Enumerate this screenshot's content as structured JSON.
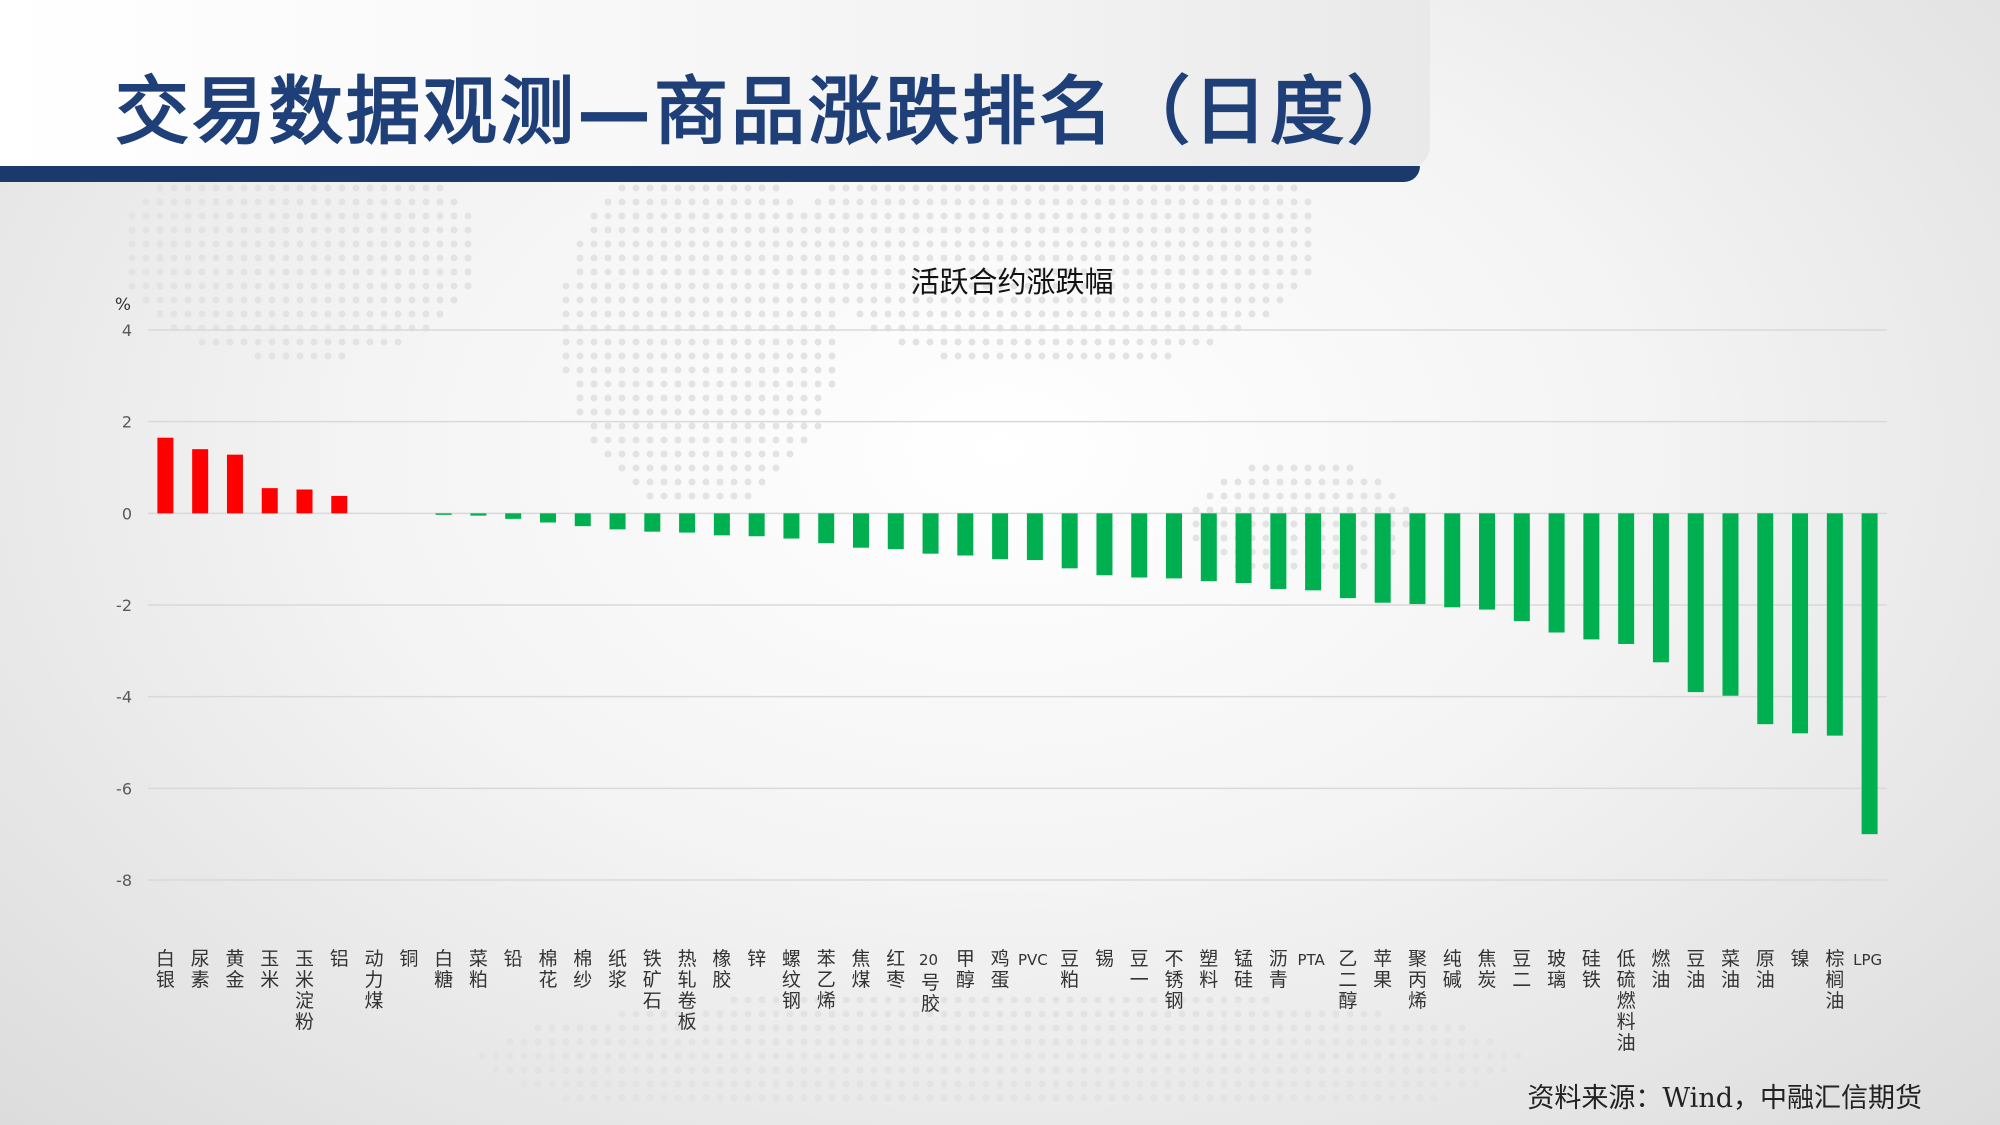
{
  "page": {
    "title": "交易数据观测—商品涨跌排名（日度）",
    "source": "资料来源：Wind，中融汇信期货"
  },
  "colors": {
    "title": "#1e3f78",
    "rule": "#1b3a6b",
    "up": "#ff0000",
    "down": "#00b050",
    "grid": "#d9d9d9",
    "axis_text": "#595959"
  },
  "chart_data": {
    "type": "bar",
    "title": "活跃合约涨跌幅",
    "ylabel": "%",
    "xlabel": "",
    "ylim": [
      -8,
      4
    ],
    "yticks": [
      4,
      2,
      0,
      -2,
      -4,
      -6,
      -8
    ],
    "grid": true,
    "legend": "none",
    "categories": [
      "白银",
      "尿素",
      "黄金",
      "玉米",
      "玉米淀粉",
      "铝",
      "动力煤",
      "铜",
      "白糖",
      "菜粕",
      "铅",
      "棉花",
      "棉纱",
      "纸浆",
      "铁矿石",
      "热轧卷板",
      "橡胶",
      "锌",
      "螺纹钢",
      "苯乙烯",
      "焦煤",
      "红枣",
      "20号胶",
      "甲醇",
      "鸡蛋",
      "PVC",
      "豆粕",
      "锡",
      "豆一",
      "不锈钢",
      "塑料",
      "锰硅",
      "沥青",
      "PTA",
      "乙二醇",
      "苹果",
      "聚丙烯",
      "纯碱",
      "焦炭",
      "豆二",
      "玻璃",
      "硅铁",
      "低硫燃料油",
      "燃油",
      "豆油",
      "菜油",
      "原油",
      "镍",
      "棕榈油",
      "LPG"
    ],
    "values": [
      1.65,
      1.4,
      1.28,
      0.55,
      0.52,
      0.38,
      0,
      0,
      -0.02,
      -0.05,
      -0.12,
      -0.2,
      -0.28,
      -0.35,
      -0.4,
      -0.42,
      -0.48,
      -0.5,
      -0.55,
      -0.65,
      -0.75,
      -0.78,
      -0.88,
      -0.92,
      -1.0,
      -1.02,
      -1.2,
      -1.35,
      -1.4,
      -1.42,
      -1.48,
      -1.52,
      -1.65,
      -1.68,
      -1.85,
      -1.95,
      -1.98,
      -2.05,
      -2.1,
      -2.35,
      -2.6,
      -2.75,
      -2.85,
      -3.25,
      -3.9,
      -3.98,
      -4.6,
      -4.8,
      -4.85,
      -7.0
    ]
  }
}
